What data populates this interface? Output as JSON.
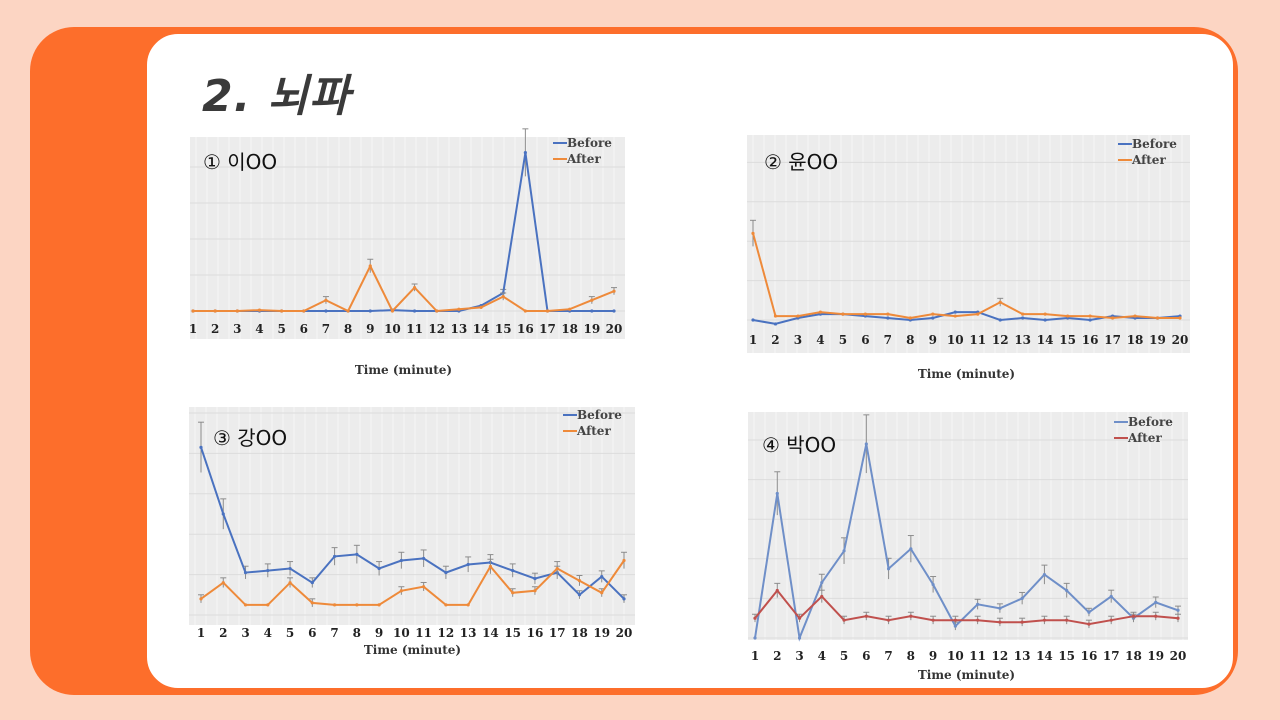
{
  "slide": {
    "title": "2. 뇌파",
    "accent_color": "#fd6e2b",
    "background_color": "#fcd5c3"
  },
  "chart_data": [
    {
      "id": "p1",
      "type": "line",
      "panel_label": "① 이OO",
      "xlabel": "Time (minute)",
      "categories": [
        "1",
        "2",
        "3",
        "4",
        "5",
        "6",
        "7",
        "8",
        "9",
        "10",
        "11",
        "12",
        "13",
        "14",
        "15",
        "16",
        "17",
        "18",
        "19",
        "20"
      ],
      "ylim": [
        0,
        10
      ],
      "grid": "on",
      "legend_position": "top-right",
      "series": [
        {
          "name": "Before",
          "color": "#4a72c0",
          "values": [
            0,
            0,
            0,
            0,
            0,
            0,
            0,
            0,
            0,
            0.05,
            0,
            0,
            0,
            0.3,
            1.0,
            8.8,
            0,
            0,
            0,
            0
          ]
        },
        {
          "name": "After",
          "color": "#ee8a3a",
          "values": [
            0,
            0,
            0,
            0.05,
            0,
            0,
            0.6,
            0,
            2.5,
            0,
            1.3,
            0,
            0.1,
            0.2,
            0.8,
            0,
            0,
            0.1,
            0.6,
            1.1
          ]
        }
      ]
    },
    {
      "id": "p2",
      "type": "line",
      "panel_label": "② 윤OO",
      "xlabel": "Time (minute)",
      "categories": [
        "1",
        "2",
        "3",
        "4",
        "5",
        "6",
        "7",
        "8",
        "9",
        "10",
        "11",
        "12",
        "13",
        "14",
        "15",
        "16",
        "17",
        "18",
        "19",
        "20"
      ],
      "ylim": [
        0,
        10
      ],
      "grid": "on",
      "legend_position": "top-right",
      "series": [
        {
          "name": "Before",
          "color": "#4a72c0",
          "values": [
            0.0,
            -0.2,
            0.1,
            0.3,
            0.3,
            0.2,
            0.1,
            0,
            0.1,
            0.4,
            0.4,
            0,
            0.1,
            0,
            0.1,
            0,
            0.2,
            0.1,
            0.1,
            0.2
          ]
        },
        {
          "name": "After",
          "color": "#ee8a3a",
          "values": [
            4.4,
            0.2,
            0.2,
            0.4,
            0.3,
            0.3,
            0.3,
            0.1,
            0.3,
            0.2,
            0.3,
            0.9,
            0.3,
            0.3,
            0.2,
            0.2,
            0.1,
            0.2,
            0.1,
            0.1
          ]
        }
      ]
    },
    {
      "id": "p3",
      "type": "line",
      "panel_label": "③ 강OO",
      "xlabel": "Time (minute)",
      "categories": [
        "1",
        "2",
        "3",
        "4",
        "5",
        "6",
        "7",
        "8",
        "9",
        "10",
        "11",
        "12",
        "13",
        "14",
        "15",
        "16",
        "17",
        "18",
        "19",
        "20"
      ],
      "ylim": [
        0,
        10
      ],
      "grid": "on",
      "legend_position": "top-right",
      "series": [
        {
          "name": "Before",
          "color": "#4a72c0",
          "values": [
            8.3,
            5.0,
            2.1,
            2.2,
            2.3,
            1.6,
            2.9,
            3.0,
            2.3,
            2.7,
            2.8,
            2.1,
            2.5,
            2.6,
            2.2,
            1.8,
            2.1,
            1.0,
            1.9,
            0.8
          ]
        },
        {
          "name": "After",
          "color": "#ee8a3a",
          "values": [
            0.8,
            1.6,
            0.5,
            0.5,
            1.6,
            0.6,
            0.5,
            0.5,
            0.5,
            1.2,
            1.4,
            0.5,
            0.5,
            2.4,
            1.1,
            1.2,
            2.3,
            1.7,
            1.1,
            2.7
          ]
        }
      ]
    },
    {
      "id": "p4",
      "type": "line",
      "panel_label": "④ 박OO",
      "xlabel": "Time (minute)",
      "categories": [
        "1",
        "2",
        "3",
        "4",
        "5",
        "6",
        "7",
        "8",
        "9",
        "10",
        "11",
        "12",
        "13",
        "14",
        "15",
        "16",
        "17",
        "18",
        "19",
        "20"
      ],
      "ylim": [
        0,
        10
      ],
      "grid": "on",
      "legend_position": "top-right",
      "series": [
        {
          "name": "Before",
          "color": "#6f8fc8",
          "values": [
            0,
            7.3,
            0,
            2.8,
            4.4,
            9.8,
            3.5,
            4.5,
            2.7,
            0.6,
            1.7,
            1.5,
            2.0,
            3.2,
            2.4,
            1.3,
            2.1,
            1.0,
            1.8,
            1.4
          ]
        },
        {
          "name": "After",
          "color": "#c0504d",
          "values": [
            1.0,
            2.4,
            1.0,
            2.1,
            0.9,
            1.1,
            0.9,
            1.1,
            0.9,
            0.9,
            0.9,
            0.8,
            0.8,
            0.9,
            0.9,
            0.7,
            0.9,
            1.1,
            1.1,
            1.0
          ]
        }
      ]
    }
  ]
}
